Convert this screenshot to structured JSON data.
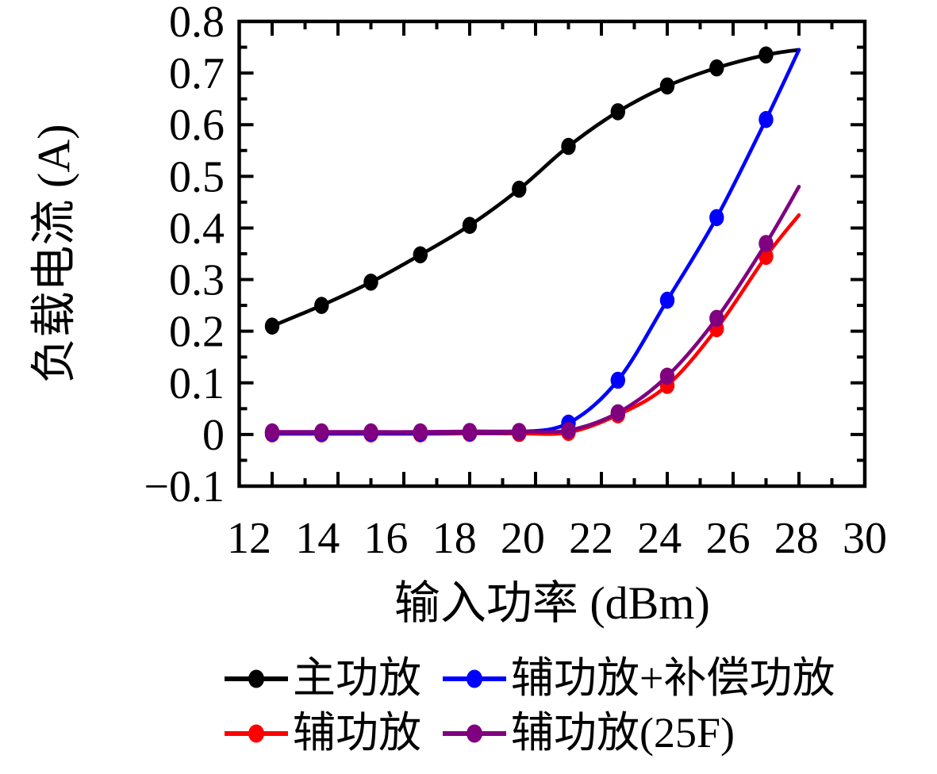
{
  "figure": {
    "background": "#ffffff"
  },
  "chart_data": {
    "type": "line",
    "title": "",
    "xlabel": "输入功率 (dBm)",
    "ylabel": "负载电流 (A)",
    "xlim": [
      11,
      30
    ],
    "ylim": [
      -0.1,
      0.8
    ],
    "grid": false,
    "legend_position": "below-chart",
    "x_major_ticks": [
      12,
      14,
      16,
      18,
      20,
      22,
      24,
      26,
      28,
      30
    ],
    "x_minor_ticks": [
      13,
      15,
      17,
      19,
      21,
      23,
      25,
      27,
      29
    ],
    "x_tick_labels": [
      "12",
      "14",
      "16",
      "18",
      "20",
      "22",
      "24",
      "26",
      "28",
      "30"
    ],
    "y_major_ticks": [
      -0.1,
      0,
      0.1,
      0.2,
      0.3,
      0.4,
      0.5,
      0.6,
      0.7,
      0.8
    ],
    "y_tick_labels": [
      "−0.1",
      "0",
      "0.1",
      "0.2",
      "0.3",
      "0.4",
      "0.5",
      "0.6",
      "0.7",
      "0.8"
    ],
    "y_minor_step": 0.05,
    "x": [
      12,
      13.5,
      15,
      16.5,
      18,
      19.5,
      21,
      22.5,
      24,
      25.5,
      27
    ],
    "line_end_x": 28,
    "series": [
      {
        "name": "主功放",
        "color": "#000000",
        "values": [
          0.21,
          0.25,
          0.295,
          0.348,
          0.405,
          0.475,
          0.558,
          0.625,
          0.675,
          0.71,
          0.735
        ],
        "line_end_value": 0.745
      },
      {
        "name": "辅功放",
        "color": "#ff0000",
        "values": [
          0.001,
          0.001,
          0.001,
          0.001,
          0.002,
          0.002,
          0.004,
          0.038,
          0.095,
          0.205,
          0.345
        ],
        "line_end_value": 0.425
      },
      {
        "name": "辅功放+补偿功放",
        "color": "#0000ff",
        "values": [
          0.003,
          0.003,
          0.003,
          0.003,
          0.004,
          0.005,
          0.022,
          0.105,
          0.26,
          0.42,
          0.61
        ],
        "line_end_value": 0.745
      },
      {
        "name": "辅功放(25F)",
        "color": "#800080",
        "values": [
          0.005,
          0.005,
          0.005,
          0.005,
          0.006,
          0.006,
          0.008,
          0.042,
          0.113,
          0.225,
          0.37
        ],
        "line_end_value": 0.48
      }
    ]
  },
  "legend": {
    "entries": [
      {
        "label": "主功放",
        "color": "#000000"
      },
      {
        "label": "辅功放+补偿功放",
        "color": "#0000ff"
      },
      {
        "label": "辅功放",
        "color": "#ff0000"
      },
      {
        "label": "辅功放(25F)",
        "color": "#800080"
      }
    ]
  }
}
